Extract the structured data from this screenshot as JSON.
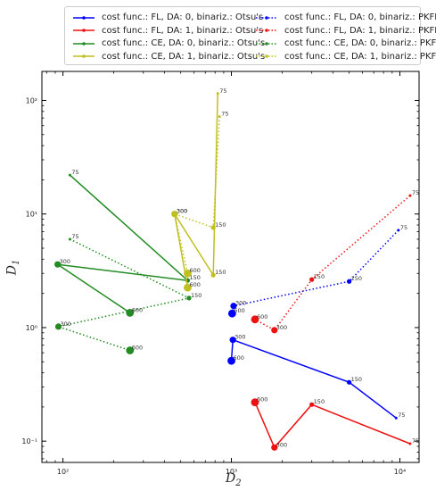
{
  "chart_data": {
    "type": "line",
    "xlabel": "D_2",
    "ylabel": "D_1",
    "xscale": "log",
    "yscale": "log",
    "xlim": [
      75,
      13000
    ],
    "ylim": [
      0.065,
      180
    ],
    "xticks": [
      {
        "value": 100,
        "label": "10²"
      },
      {
        "value": 1000,
        "label": "10³"
      },
      {
        "value": 10000,
        "label": "10⁴"
      }
    ],
    "yticks": [
      {
        "value": 0.1,
        "label": "10⁻¹"
      },
      {
        "value": 1,
        "label": "10⁰"
      },
      {
        "value": 10,
        "label": "10¹"
      },
      {
        "value": 100,
        "label": "10²"
      }
    ],
    "grid": false,
    "legend_position": "top",
    "series": [
      {
        "name": "cost func.: FL, DA: 0, binariz.: Otsu's",
        "color": "#0000ff",
        "style": "solid",
        "points": [
          {
            "x": 9500,
            "y": 0.16,
            "label": "75"
          },
          {
            "x": 5000,
            "y": 0.33,
            "label": "150"
          },
          {
            "x": 1020,
            "y": 0.78,
            "label": "300"
          },
          {
            "x": 1000,
            "y": 0.51,
            "label": "600"
          }
        ]
      },
      {
        "name": "cost func.: FL, DA: 1, binariz.: Otsu's",
        "color": "#ee1111",
        "style": "solid",
        "points": [
          {
            "x": 11500,
            "y": 0.095,
            "label": "75"
          },
          {
            "x": 3000,
            "y": 0.21,
            "label": "150"
          },
          {
            "x": 1800,
            "y": 0.088,
            "label": "300"
          },
          {
            "x": 1380,
            "y": 0.22,
            "label": "600"
          }
        ]
      },
      {
        "name": "cost func.: CE, DA: 0, binariz.: Otsu's",
        "color": "#228b22",
        "style": "solid",
        "points": [
          {
            "x": 110,
            "y": 22,
            "label": "75"
          },
          {
            "x": 550,
            "y": 2.6,
            "label": "150"
          },
          {
            "x": 93,
            "y": 3.6,
            "label": "300"
          },
          {
            "x": 250,
            "y": 1.35,
            "label": "600"
          }
        ]
      },
      {
        "name": "cost func.: CE, DA: 1, binariz.: Otsu's",
        "color": "#bfbf1f",
        "style": "solid",
        "points": [
          {
            "x": 830,
            "y": 115,
            "label": "75"
          },
          {
            "x": 780,
            "y": 2.9,
            "label": "150"
          },
          {
            "x": 460,
            "y": 10,
            "label": "300"
          },
          {
            "x": 550,
            "y": 2.25,
            "label": "600"
          }
        ]
      },
      {
        "name": "cost func.: FL, DA: 0, binariz.: PKFP",
        "color": "#0000ff",
        "style": "dotted",
        "points": [
          {
            "x": 9800,
            "y": 7.2,
            "label": "75"
          },
          {
            "x": 5000,
            "y": 2.55,
            "label": "150"
          },
          {
            "x": 1030,
            "y": 1.55,
            "label": "300"
          },
          {
            "x": 1010,
            "y": 1.33,
            "label": "600"
          }
        ]
      },
      {
        "name": "cost func.: FL, DA: 1, binariz.: PKFP",
        "color": "#ee1111",
        "style": "dotted",
        "points": [
          {
            "x": 11500,
            "y": 14.5,
            "label": "75"
          },
          {
            "x": 3000,
            "y": 2.65,
            "label": "150"
          },
          {
            "x": 1800,
            "y": 0.95,
            "label": "300"
          },
          {
            "x": 1380,
            "y": 1.18,
            "label": "600"
          }
        ]
      },
      {
        "name": "cost func.: CE, DA: 0, binariz.: PKFP",
        "color": "#228b22",
        "style": "dotted",
        "points": [
          {
            "x": 110,
            "y": 6.0,
            "label": "75"
          },
          {
            "x": 560,
            "y": 1.82,
            "label": "150"
          },
          {
            "x": 94,
            "y": 1.02,
            "label": "300"
          },
          {
            "x": 250,
            "y": 0.63,
            "label": "600"
          }
        ]
      },
      {
        "name": "cost func.: CE, DA: 1, binariz.: PKFP",
        "color": "#bfbf1f",
        "style": "dotted",
        "points": [
          {
            "x": 850,
            "y": 72,
            "label": "75"
          },
          {
            "x": 780,
            "y": 7.6,
            "label": "150"
          },
          {
            "x": 460,
            "y": 10,
            "label": "300"
          },
          {
            "x": 550,
            "y": 3.0,
            "label": "600"
          }
        ]
      }
    ]
  }
}
